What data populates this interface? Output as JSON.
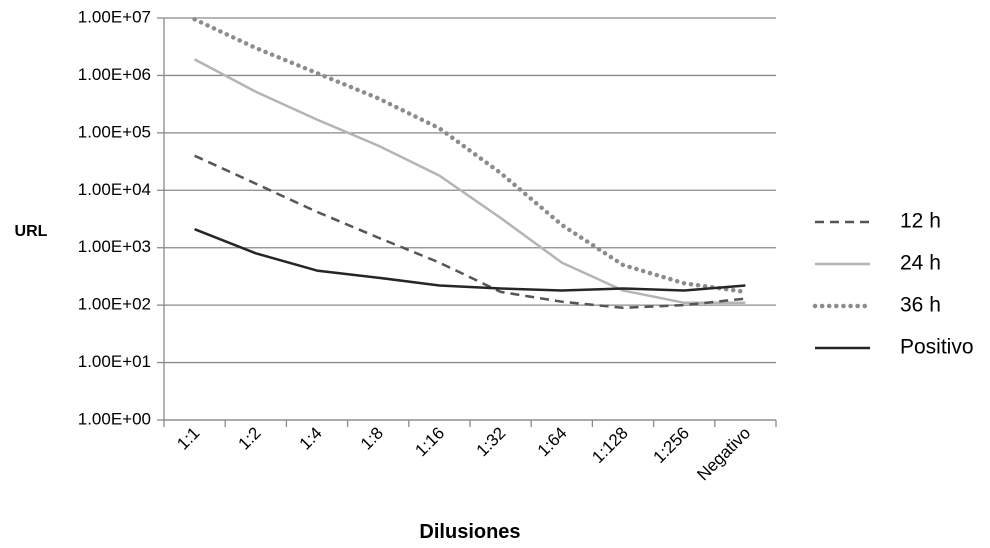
{
  "chart_data": {
    "type": "line",
    "title": "",
    "xlabel": "Dilusiones",
    "ylabel": "URL",
    "yscale": "log",
    "ylim": [
      1,
      10000000
    ],
    "yticks": [
      "1.00E+00",
      "1.00E+01",
      "1.00E+02",
      "1.00E+03",
      "1.00E+04",
      "1.00E+05",
      "1.00E+06",
      "1.00E+07"
    ],
    "grid": "horizontal",
    "legend_position": "right",
    "categories": [
      "1:1",
      "1:2",
      "1:4",
      "1:8",
      "1:16",
      "1:32",
      "1:64",
      "1:128",
      "1:256",
      "Negativo"
    ],
    "series": [
      {
        "name": "12 h",
        "style": "dashed",
        "color": "#555555",
        "values": [
          40000,
          13000,
          4200,
          1500,
          550,
          170,
          115,
          90,
          100,
          130
        ]
      },
      {
        "name": "24 h",
        "style": "solid",
        "color": "#b4b4b4",
        "values": [
          1900000,
          520000,
          170000,
          60000,
          18000,
          3300,
          550,
          180,
          110,
          110
        ]
      },
      {
        "name": "36 h",
        "style": "dotted",
        "color": "#8c8c8c",
        "values": [
          9500000,
          3000000,
          1100000,
          400000,
          120000,
          20000,
          2500,
          500,
          240,
          170
        ]
      },
      {
        "name": "Positivo",
        "style": "solid",
        "color": "#262626",
        "values": [
          2100,
          800,
          400,
          300,
          220,
          195,
          180,
          195,
          180,
          220
        ]
      }
    ]
  }
}
